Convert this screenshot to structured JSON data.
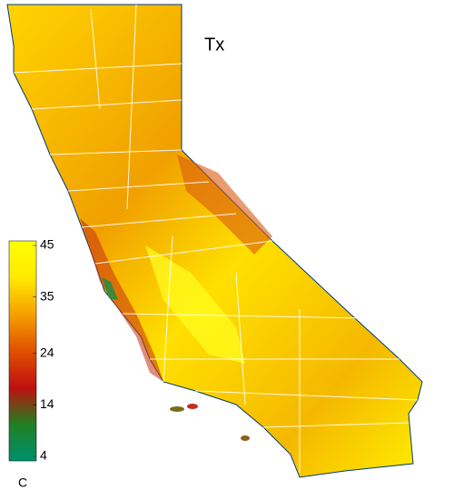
{
  "title": "Tx",
  "colorbar": {
    "range": [
      4,
      45
    ],
    "ticks": [
      45,
      35,
      24,
      14,
      4
    ],
    "unit": "C",
    "colors": [
      "#ffff00",
      "#ffea00",
      "#f7a000",
      "#e05000",
      "#c01010",
      "#208020",
      "#009070"
    ]
  }
}
